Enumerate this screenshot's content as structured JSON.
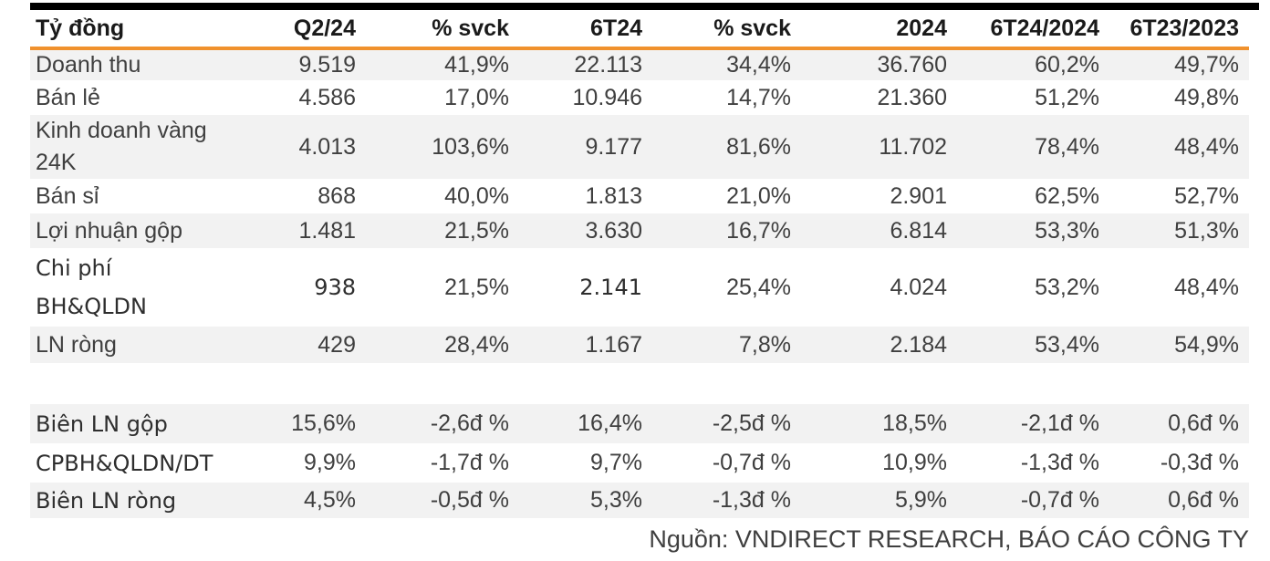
{
  "colors": {
    "accent_orange": "#F0912D",
    "top_bar_black": "#000000",
    "row_stripe_gray": "#F2F2F2",
    "body_text": "#3F3F3F",
    "header_text": "#1A1A1A"
  },
  "chart_data": {
    "type": "table",
    "title": "Tỷ đồng",
    "columns": [
      "Tỷ đồng",
      "Q2/24",
      "% svck",
      "6T24",
      "% svck",
      "2024",
      "6T24/2024",
      "6T23/2023"
    ],
    "rows": [
      {
        "label": "Doanh thu",
        "values": [
          "9.519",
          "41,9%",
          "22.113",
          "34,4%",
          "36.760",
          "60,2%",
          "49,7%"
        ]
      },
      {
        "label": "Bán lẻ",
        "values": [
          "4.586",
          "17,0%",
          "10.946",
          "14,7%",
          "21.360",
          "51,2%",
          "49,8%"
        ]
      },
      {
        "label": "Kinh doanh vàng\n24K",
        "values": [
          "4.013",
          "103,6%",
          "9.177",
          "81,6%",
          "11.702",
          "78,4%",
          "48,4%"
        ]
      },
      {
        "label": "Bán sỉ",
        "values": [
          "868",
          "40,0%",
          "1.813",
          "21,0%",
          "2.901",
          "62,5%",
          "52,7%"
        ]
      },
      {
        "label": "Lợi nhuận gộp",
        "values": [
          "1.481",
          "21,5%",
          "3.630",
          "16,7%",
          "6.814",
          "53,3%",
          "51,3%"
        ]
      },
      {
        "label": "Chi phí\nBH&QLDN",
        "values": [
          "938",
          "21,5%",
          "2.141",
          "25,4%",
          "4.024",
          "53,2%",
          "48,4%"
        ]
      },
      {
        "label": "LN ròng",
        "values": [
          "429",
          "28,4%",
          "1.167",
          "7,8%",
          "2.184",
          "53,4%",
          "54,9%"
        ]
      },
      {
        "label": "",
        "values": [
          "",
          "",
          "",
          "",
          "",
          "",
          ""
        ]
      },
      {
        "label": "Biên LN gộp",
        "values": [
          "15,6%",
          "-2,6đ %",
          "16,4%",
          "-2,5đ %",
          "18,5%",
          "-2,1đ %",
          "0,6đ %"
        ]
      },
      {
        "label": "CPBH&QLDN/DT",
        "values": [
          "9,9%",
          "-1,7đ %",
          "9,7%",
          "-0,7đ %",
          "10,9%",
          "-1,3đ %",
          "-0,3đ %"
        ]
      },
      {
        "label": "Biên LN ròng",
        "values": [
          "4,5%",
          "-0,5đ %",
          "5,3%",
          "-1,3đ %",
          "5,9%",
          "-0,7đ %",
          "0,6đ %"
        ]
      }
    ],
    "legend": [],
    "grid": "horizontal-stripes",
    "unit": "Tỷ đồng (billion VND)"
  },
  "footer": {
    "source_text": "Nguồn: VNDIRECT RESEARCH, BÁO CÁO CÔNG TY"
  }
}
